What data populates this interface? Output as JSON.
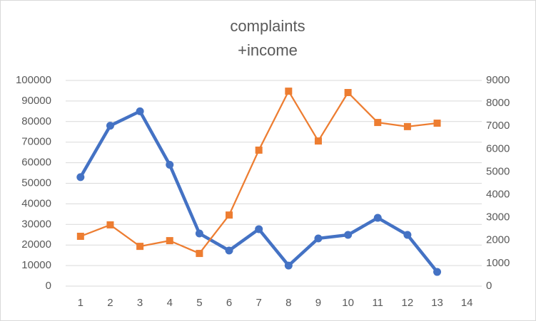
{
  "chart_data": {
    "type": "line",
    "title": [
      "complaints",
      "+income"
    ],
    "categories": [
      "1",
      "2",
      "3",
      "4",
      "5",
      "6",
      "7",
      "8",
      "9",
      "10",
      "11",
      "12",
      "13",
      "14"
    ],
    "series": [
      {
        "color": "#4472c4",
        "axis": "y",
        "marker": "circle",
        "values": [
          53000,
          78000,
          85000,
          59000,
          25600,
          17300,
          27700,
          10000,
          23200,
          24900,
          33200,
          24900,
          6900,
          null
        ]
      },
      {
        "color": "#ed7d31",
        "axis": "y2",
        "marker": "square",
        "values": [
          2180,
          2680,
          1740,
          1990,
          1430,
          3110,
          5950,
          8530,
          6350,
          8470,
          7160,
          6980,
          7130,
          null
        ]
      }
    ],
    "ylim": [
      0,
      100000
    ],
    "yticks": [
      0,
      10000,
      20000,
      30000,
      40000,
      50000,
      60000,
      70000,
      80000,
      90000,
      100000
    ],
    "y2lim": [
      0,
      9000
    ],
    "y2ticks": [
      0,
      1000,
      2000,
      3000,
      4000,
      5000,
      6000,
      7000,
      8000,
      9000
    ],
    "grid": true
  }
}
